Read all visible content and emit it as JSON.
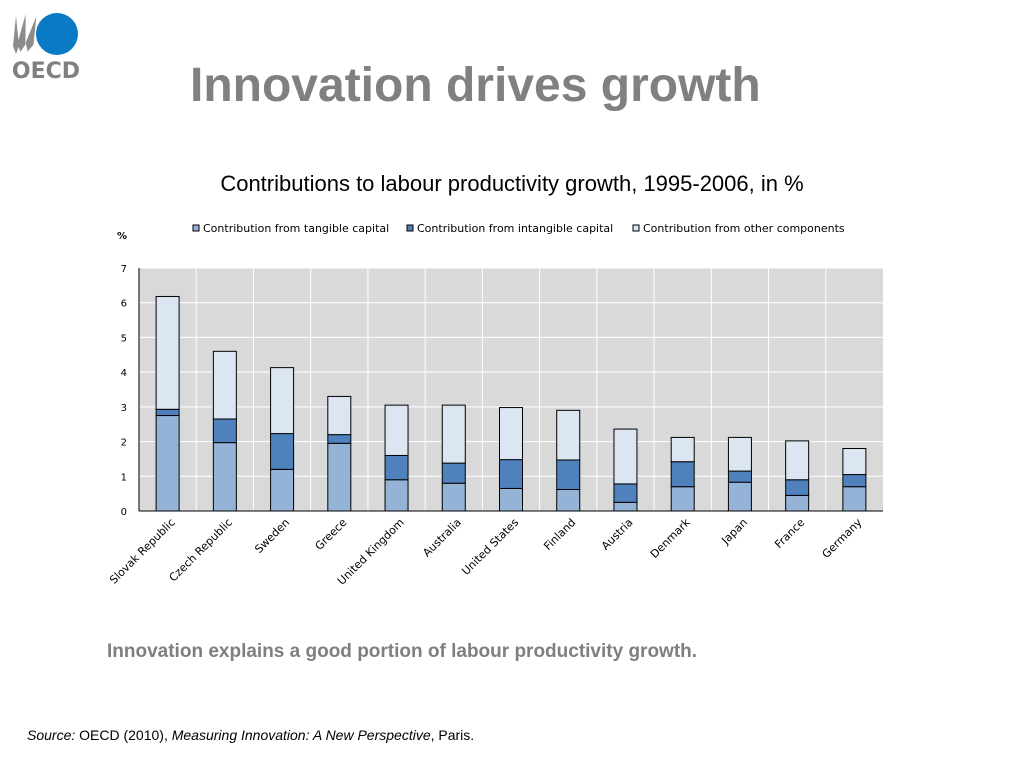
{
  "header": {
    "logo_text": "OECD",
    "title": "Innovation drives growth"
  },
  "colors": {
    "title_gray": "#808080",
    "plot_bg": "#d9d9d9",
    "tangible": "#95b3d7",
    "intangible": "#4f81bd",
    "other": "#dce6f2",
    "logo_blue": "#0a7ac4"
  },
  "chart_data": {
    "type": "bar",
    "stacked": true,
    "title": "Contributions to labour productivity growth, 1995-2006, in %",
    "ylabel": "%",
    "ylim": [
      0,
      7
    ],
    "yticks": [
      0,
      1,
      2,
      3,
      4,
      5,
      6,
      7
    ],
    "grid": true,
    "legend_position": "top",
    "categories": [
      "Slovak Republic",
      "Czech Republic",
      "Sweden",
      "Greece",
      "United Kingdom",
      "Australia",
      "United States",
      "Finland",
      "Austria",
      "Denmark",
      "Japan",
      "France",
      "Germany"
    ],
    "series": [
      {
        "name": "Contribution from tangible capital",
        "color": "#95b3d7",
        "values": [
          2.75,
          1.97,
          1.2,
          1.95,
          0.9,
          0.8,
          0.65,
          0.62,
          0.25,
          0.7,
          0.83,
          0.45,
          0.7
        ]
      },
      {
        "name": "Contribution from intangible capital",
        "color": "#4f81bd",
        "values": [
          0.18,
          0.68,
          1.03,
          0.25,
          0.7,
          0.58,
          0.83,
          0.85,
          0.53,
          0.72,
          0.32,
          0.45,
          0.35
        ]
      },
      {
        "name": "Contribution from other components",
        "color": "#dce6f2",
        "values": [
          3.25,
          1.95,
          1.9,
          1.1,
          1.45,
          1.67,
          1.5,
          1.43,
          1.58,
          0.7,
          0.97,
          1.12,
          0.75
        ]
      }
    ]
  },
  "subtitle": "Innovation explains a good portion of labour productivity growth.",
  "source": {
    "label": "Source:",
    "text1": " OECD (2010), ",
    "publication": "Measuring Innovation: A New Perspective",
    "text2": ", Paris."
  }
}
